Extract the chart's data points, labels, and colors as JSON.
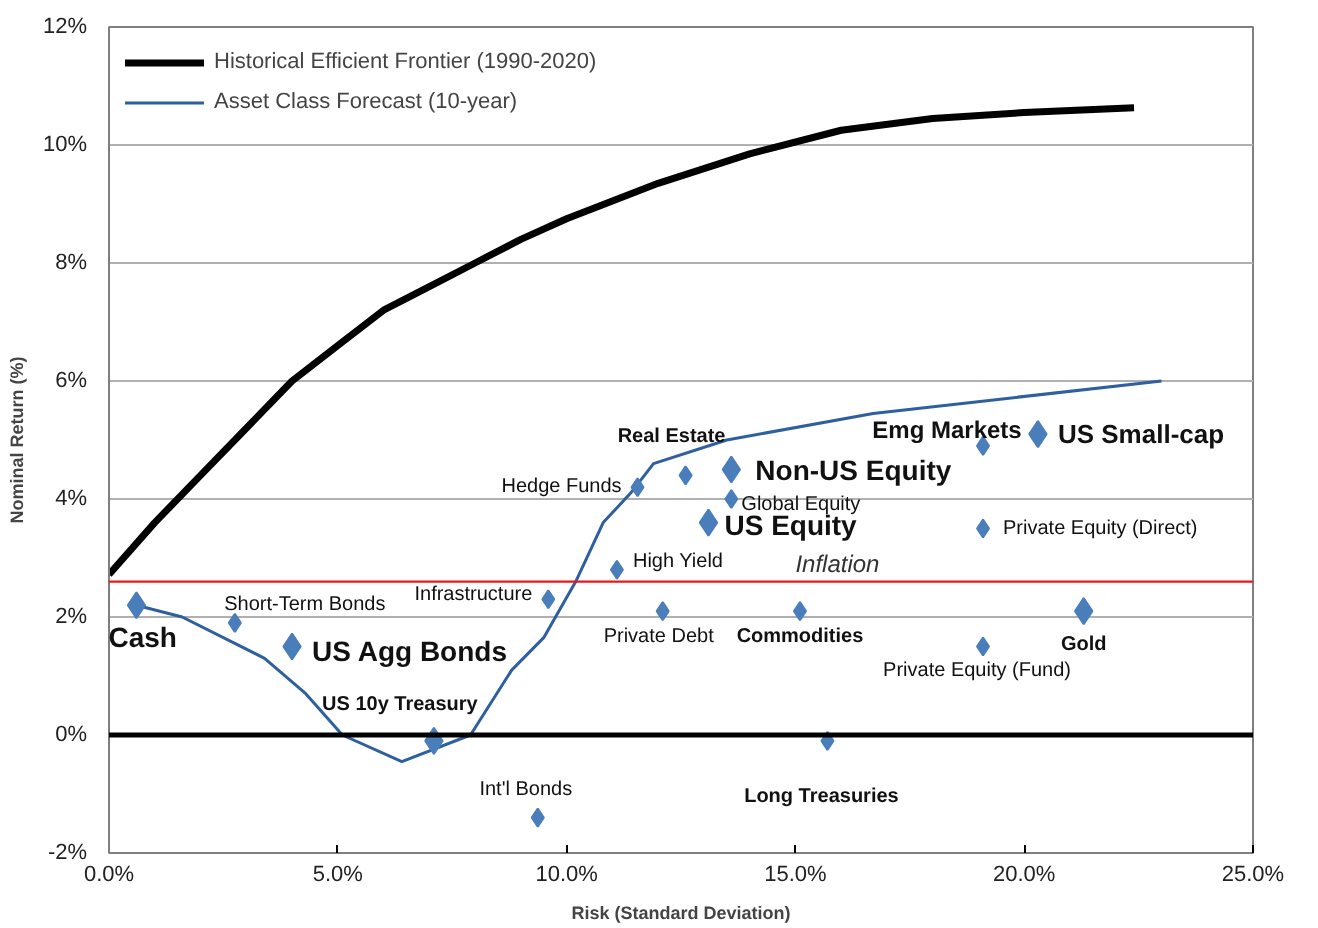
{
  "chart_data": {
    "type": "scatter",
    "xlabel": "Risk (Standard Deviation)",
    "ylabel": "Nominal Return (%)",
    "xlim": [
      0,
      25
    ],
    "xticks": [
      {
        "value": 0,
        "label": "0.0%"
      },
      {
        "value": 5,
        "label": "5.0%"
      },
      {
        "value": 10,
        "label": "10.0%"
      },
      {
        "value": 15,
        "label": "15.0%"
      },
      {
        "value": 20,
        "label": "20.0%"
      },
      {
        "value": 25,
        "label": "25.0%"
      }
    ],
    "ylim": [
      -2,
      12
    ],
    "yticks": [
      {
        "value": -2,
        "label": "-2%"
      },
      {
        "value": 0,
        "label": "0%"
      },
      {
        "value": 2,
        "label": "2%"
      },
      {
        "value": 4,
        "label": "4%"
      },
      {
        "value": 6,
        "label": "6%"
      },
      {
        "value": 8,
        "label": "8%"
      },
      {
        "value": 10,
        "label": "10%"
      },
      {
        "value": 12,
        "label": "12%"
      }
    ],
    "grid": "y",
    "legend": "top left",
    "series": [
      {
        "name": "Historical Efficient Frontier (1990-2020)",
        "type": "line",
        "color": "#000000",
        "x": [
          0,
          1,
          2,
          3,
          4,
          5,
          6,
          7,
          8,
          9,
          10,
          12,
          14,
          16,
          18,
          20,
          22.4
        ],
        "values": [
          2.72,
          3.6,
          4.4,
          5.2,
          6.0,
          6.6,
          7.2,
          7.6,
          8.0,
          8.4,
          8.75,
          9.35,
          9.85,
          10.25,
          10.45,
          10.55,
          10.63
        ]
      },
      {
        "name": "Asset Class Forecast (10-year)",
        "type": "line",
        "color": "#2e5f9e",
        "x": [
          0.6,
          1.6,
          3.4,
          4.3,
          5.1,
          6.4,
          7.9,
          8.8,
          9.5,
          10.2,
          10.8,
          11.4,
          11.9,
          13.5,
          16.7,
          23.0
        ],
        "values": [
          2.2,
          2.0,
          1.3,
          0.7,
          0,
          -0.45,
          0,
          1.1,
          1.65,
          2.6,
          3.6,
          4.1,
          4.6,
          5.0,
          5.45,
          6.0
        ]
      },
      {
        "marker": "diamond",
        "color": "#4a7ebb",
        "x": [
          2.75,
          9.37,
          9.6,
          11.1,
          12.1,
          11.55,
          12.6,
          13.6,
          15.1,
          15.7,
          19.1,
          19.1,
          19.1
        ],
        "values": [
          1.9,
          -1.4,
          2.3,
          2.8,
          2.1,
          4.2,
          4.4,
          4.0,
          2.1,
          -0.1,
          4.9,
          3.5,
          1.5
        ]
      },
      {
        "marker": "diamond",
        "color": "#4a7ebb",
        "x": [
          0.6,
          4.0,
          7.1,
          13.6,
          13.1,
          20.3,
          21.3
        ],
        "values": [
          2.2,
          1.5,
          -0.1,
          4.5,
          3.6,
          5.1,
          2.1
        ]
      }
    ],
    "ref_lines": [
      {
        "axis": "y",
        "value": 0,
        "color": "#000000"
      },
      {
        "axis": "y",
        "value": 2.6,
        "color": "#e31a1c",
        "label": "Inflation"
      }
    ],
    "annotations": [
      {
        "text": "Cash",
        "x": 0.6,
        "y": 2.2
      },
      {
        "text": "Short-Term Bonds",
        "x": 2.75,
        "y": 1.9
      },
      {
        "text": "US Agg Bonds",
        "x": 4.0,
        "y": 1.5
      },
      {
        "text": "US 10y Treasury",
        "x": 7.1,
        "y": -0.1
      },
      {
        "text": "Int'l Bonds",
        "x": 9.37,
        "y": -1.4
      },
      {
        "text": "Infrastructure",
        "x": 9.6,
        "y": 2.3
      },
      {
        "text": "High Yield",
        "x": 11.1,
        "y": 2.8
      },
      {
        "text": "Private Debt",
        "x": 12.1,
        "y": 2.1
      },
      {
        "text": "Hedge Funds",
        "x": 11.55,
        "y": 4.2
      },
      {
        "text": "Real Estate",
        "x": 12.6,
        "y": 4.4
      },
      {
        "text": "Non-US Equity",
        "x": 13.6,
        "y": 4.5
      },
      {
        "text": "Global Equity",
        "x": 13.6,
        "y": 4.0
      },
      {
        "text": "US Equity",
        "x": 13.1,
        "y": 3.6
      },
      {
        "text": "Commodities",
        "x": 15.1,
        "y": 2.1
      },
      {
        "text": "Long Treasuries",
        "x": 15.7,
        "y": -0.1
      },
      {
        "text": "Emg Markets",
        "x": 19.1,
        "y": 4.9
      },
      {
        "text": "US Small-cap",
        "x": 20.3,
        "y": 5.1
      },
      {
        "text": "Private Equity (Direct)",
        "x": 19.1,
        "y": 3.5
      },
      {
        "text": "Private Equity (Fund)",
        "x": 19.1,
        "y": 1.5
      },
      {
        "text": "Gold",
        "x": 21.3,
        "y": 2.1
      }
    ]
  }
}
